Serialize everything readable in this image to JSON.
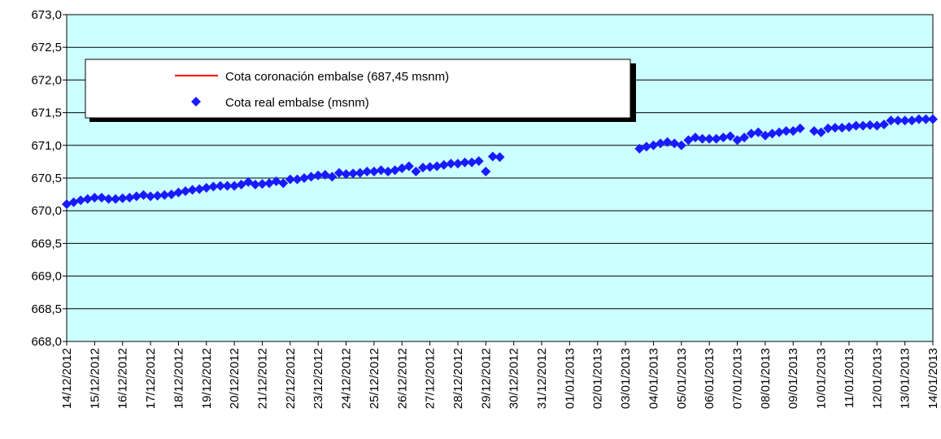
{
  "chart_data": {
    "type": "scatter",
    "series": [
      {
        "name": "Cota coronación embalse (687,45 msnm)",
        "color": "#ff0000"
      },
      {
        "name": "Cota real embalse (msnm)",
        "color": "#1a1aff",
        "x": [
          0,
          0.25,
          0.5,
          0.75,
          1,
          1.25,
          1.5,
          1.75,
          2,
          2.25,
          2.5,
          2.75,
          3,
          3.25,
          3.5,
          3.75,
          4,
          4.25,
          4.5,
          4.75,
          5,
          5.25,
          5.5,
          5.75,
          6,
          6.25,
          6.5,
          6.75,
          7,
          7.25,
          7.5,
          7.75,
          8,
          8.25,
          8.5,
          8.75,
          9,
          9.25,
          9.5,
          9.75,
          10,
          10.25,
          10.5,
          10.75,
          11,
          11.25,
          11.5,
          11.75,
          12,
          12.25,
          12.5,
          12.75,
          13,
          13.25,
          13.5,
          13.75,
          14,
          14.25,
          14.5,
          14.75,
          15,
          15.25,
          15.5,
          15.75,
          16,
          16.25,
          16.5,
          16.75,
          17,
          17.25,
          17.5,
          17.75,
          18,
          18.25,
          18.5,
          18.75,
          19,
          19.25,
          19.5,
          19.75,
          20,
          20.25,
          20.5,
          20.75,
          21,
          21.25,
          21.5,
          21.75,
          22,
          22.25,
          22.5,
          22.75,
          23,
          23.25,
          23.5,
          23.75,
          24,
          24.25,
          24.5,
          24.75,
          25,
          25.25,
          25.5,
          25.75,
          26,
          26.25,
          26.5,
          26.75,
          27,
          27.25,
          27.5,
          27.75,
          28,
          28.25,
          28.5,
          28.75,
          29,
          29.25,
          29.5,
          29.75,
          30,
          30.25,
          30.5,
          30.75,
          31
        ],
        "values": [
          670.1,
          670.13,
          670.16,
          670.18,
          670.2,
          670.2,
          670.18,
          670.18,
          670.19,
          670.2,
          670.22,
          670.24,
          670.22,
          670.23,
          670.24,
          670.25,
          670.28,
          670.3,
          670.32,
          670.33,
          670.35,
          670.37,
          670.38,
          670.38,
          670.38,
          670.4,
          670.44,
          670.4,
          670.41,
          670.42,
          670.45,
          670.42,
          670.48,
          670.48,
          670.5,
          670.52,
          670.54,
          670.55,
          670.52,
          670.58,
          670.56,
          670.57,
          670.58,
          670.6,
          670.6,
          670.62,
          670.6,
          670.62,
          670.65,
          670.68,
          670.6,
          670.66,
          670.67,
          670.68,
          670.7,
          670.72,
          670.72,
          670.74,
          670.74,
          670.76,
          670.6,
          670.83,
          670.82,
          null,
          null,
          null,
          null,
          null,
          null,
          null,
          null,
          null,
          null,
          null,
          null,
          null,
          null,
          null,
          null,
          null,
          null,
          null,
          670.95,
          670.98,
          671.0,
          671.03,
          671.05,
          671.03,
          671.0,
          671.08,
          671.12,
          671.1,
          671.1,
          671.1,
          671.12,
          671.14,
          671.08,
          671.12,
          671.18,
          671.2,
          671.15,
          671.18,
          671.2,
          671.22,
          671.22,
          671.26,
          null,
          671.22,
          671.2,
          671.26,
          671.27,
          671.27,
          671.28,
          671.3,
          671.3,
          671.31,
          671.3,
          671.32,
          671.38,
          671.38,
          671.38,
          671.38,
          671.4,
          671.4,
          671.4
        ]
      }
    ],
    "xlim": [
      0,
      31
    ],
    "xticks": [
      {
        "value": 0,
        "label": "14/12/2012"
      },
      {
        "value": 1,
        "label": "15/12/2012"
      },
      {
        "value": 2,
        "label": "16/12/2012"
      },
      {
        "value": 3,
        "label": "17/12/2012"
      },
      {
        "value": 4,
        "label": "18/12/2012"
      },
      {
        "value": 5,
        "label": "19/12/2012"
      },
      {
        "value": 6,
        "label": "20/12/2012"
      },
      {
        "value": 7,
        "label": "21/12/2012"
      },
      {
        "value": 8,
        "label": "22/12/2012"
      },
      {
        "value": 9,
        "label": "23/12/2012"
      },
      {
        "value": 10,
        "label": "24/12/2012"
      },
      {
        "value": 11,
        "label": "25/12/2012"
      },
      {
        "value": 12,
        "label": "26/12/2012"
      },
      {
        "value": 13,
        "label": "27/12/2012"
      },
      {
        "value": 14,
        "label": "28/12/2012"
      },
      {
        "value": 15,
        "label": "29/12/2012"
      },
      {
        "value": 16,
        "label": "30/12/2012"
      },
      {
        "value": 17,
        "label": "31/12/2012"
      },
      {
        "value": 18,
        "label": "01/01/2013"
      },
      {
        "value": 19,
        "label": "02/01/2013"
      },
      {
        "value": 20,
        "label": "03/01/2013"
      },
      {
        "value": 21,
        "label": "04/01/2013"
      },
      {
        "value": 22,
        "label": "05/01/2013"
      },
      {
        "value": 23,
        "label": "06/01/2013"
      },
      {
        "value": 24,
        "label": "07/01/2013"
      },
      {
        "value": 25,
        "label": "08/01/2013"
      },
      {
        "value": 26,
        "label": "09/01/2013"
      },
      {
        "value": 27,
        "label": "10/01/2013"
      },
      {
        "value": 28,
        "label": "11/01/2013"
      },
      {
        "value": 29,
        "label": "12/01/2013"
      },
      {
        "value": 30,
        "label": "13/01/2013"
      },
      {
        "value": 31,
        "label": "14/01/2013"
      }
    ],
    "ylim": [
      668,
      673
    ],
    "yticks": [
      {
        "value": 668,
        "label": "668,0"
      },
      {
        "value": 668.5,
        "label": "668,5"
      },
      {
        "value": 669,
        "label": "669,0"
      },
      {
        "value": 669.5,
        "label": "669,5"
      },
      {
        "value": 670,
        "label": "670,0"
      },
      {
        "value": 670.5,
        "label": "670,5"
      },
      {
        "value": 671,
        "label": "671,0"
      },
      {
        "value": 671.5,
        "label": "671,5"
      },
      {
        "value": 672,
        "label": "672,0"
      },
      {
        "value": 672.5,
        "label": "672,5"
      },
      {
        "value": 673,
        "label": "673,0"
      }
    ],
    "grid": true,
    "background": "#ccffff"
  }
}
